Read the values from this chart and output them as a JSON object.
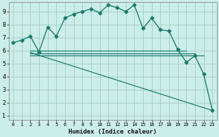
{
  "title": "",
  "xlabel": "Humidex (Indice chaleur)",
  "ylabel": "",
  "background_color": "#cceee8",
  "grid_color": "#aacccc",
  "line_color": "#1a7a6e",
  "xlim": [
    -0.5,
    23.5
  ],
  "ylim": [
    0.7,
    9.7
  ],
  "xticks": [
    0,
    1,
    2,
    3,
    4,
    5,
    6,
    7,
    8,
    9,
    10,
    11,
    12,
    13,
    14,
    15,
    16,
    17,
    18,
    19,
    20,
    21,
    22,
    23
  ],
  "yticks": [
    1,
    2,
    3,
    4,
    5,
    6,
    7,
    8,
    9
  ],
  "main_series": {
    "x": [
      0,
      1,
      2,
      3,
      4,
      5,
      6,
      7,
      8,
      9,
      10,
      11,
      12,
      13,
      14,
      15,
      16,
      17,
      18,
      19,
      20,
      21,
      22,
      23
    ],
    "y": [
      6.6,
      6.8,
      7.1,
      5.9,
      7.8,
      7.1,
      8.5,
      8.8,
      9.0,
      9.2,
      8.9,
      9.5,
      9.3,
      9.0,
      9.5,
      7.7,
      8.5,
      7.6,
      7.5,
      6.1,
      5.1,
      5.6,
      4.2,
      1.4
    ]
  },
  "flat_lines": [
    {
      "x": [
        2,
        20
      ],
      "y": [
        6.0,
        6.0
      ]
    },
    {
      "x": [
        2,
        21
      ],
      "y": [
        5.8,
        5.8
      ]
    },
    {
      "x": [
        2,
        22
      ],
      "y": [
        5.6,
        5.6
      ]
    },
    {
      "x": [
        2,
        23
      ],
      "y": [
        5.85,
        1.4
      ]
    }
  ]
}
